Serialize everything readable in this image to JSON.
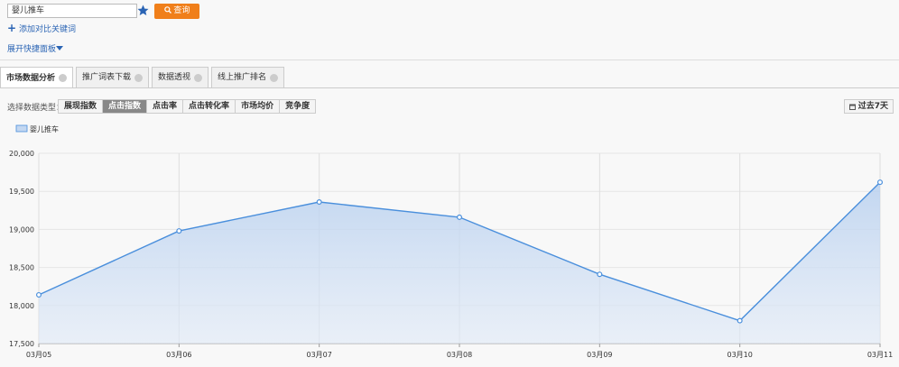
{
  "search": {
    "input": "婴儿推车",
    "button": "查询",
    "add_compare": "添加对比关键词",
    "expand_panel": "展开快捷面板"
  },
  "tabs": [
    "市场数据分析",
    "推广词表下载",
    "数据透视",
    "线上推广排名"
  ],
  "active_tab": 0,
  "toolbar": {
    "label": "选择数据类型：",
    "types": [
      "展现指数",
      "点击指数",
      "点击率",
      "点击转化率",
      "市场均价",
      "竞争度"
    ],
    "active_type": 1,
    "range": "过去7天"
  },
  "chart_data": {
    "type": "line",
    "categories": [
      "03月05",
      "03月06",
      "03月07",
      "03月08",
      "03月09",
      "03月10",
      "03月11"
    ],
    "series": [
      {
        "name": "婴儿推车",
        "color": "#4a8fdc",
        "values": [
          18140,
          18980,
          19360,
          19160,
          18410,
          17800,
          19620
        ]
      }
    ],
    "area": true,
    "ylim": [
      17500,
      20000
    ],
    "yticks": [
      {
        "value": 17500,
        "label": "17,500"
      },
      {
        "value": 18000,
        "label": "18,000"
      },
      {
        "value": 18500,
        "label": "18,500"
      },
      {
        "value": 19000,
        "label": "19,000"
      },
      {
        "value": 19500,
        "label": "19,500"
      },
      {
        "value": 20000,
        "label": "20,000"
      }
    ],
    "grid": true
  }
}
